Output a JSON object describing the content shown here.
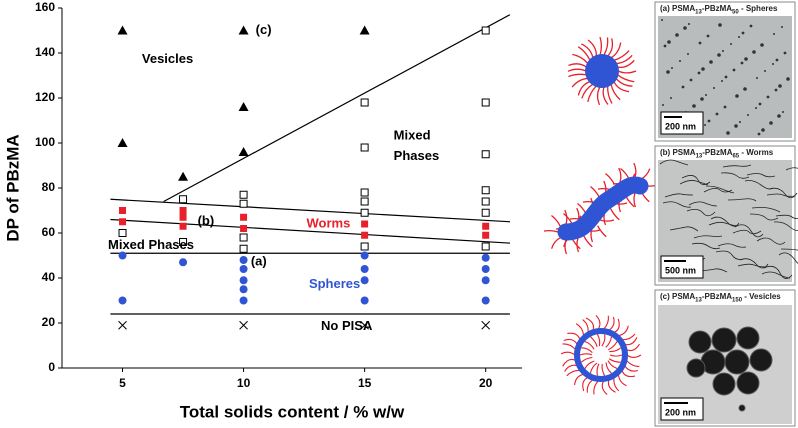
{
  "chart_data": {
    "type": "scatter",
    "xlabel": "Total solids content / % w/w",
    "ylabel": "DP of PBzMA",
    "xlim": [
      2.5,
      21.5
    ],
    "xticks": [
      5,
      10,
      15,
      20
    ],
    "ylim": [
      0,
      160
    ],
    "yticks": [
      0,
      20,
      40,
      60,
      80,
      100,
      120,
      140,
      160
    ],
    "series": [
      {
        "marker": "triangle",
        "color": "#000000",
        "x": [
          5,
          5,
          7.5,
          10,
          10,
          10,
          15
        ],
        "values": [
          150,
          100,
          85,
          150,
          116,
          96,
          150
        ]
      },
      {
        "marker": "square",
        "color": "#e8202a",
        "x": [
          5,
          5,
          7.5,
          7.5,
          7.5,
          10,
          10,
          15,
          15,
          20,
          20
        ],
        "values": [
          70,
          65,
          70,
          67,
          63,
          67,
          62,
          64,
          59,
          63,
          59
        ]
      },
      {
        "marker": "open-square",
        "color": "#000000",
        "x": [
          5,
          7.5,
          7.5,
          10,
          10,
          10,
          10,
          15,
          15,
          15,
          15,
          15,
          15,
          20,
          20,
          20,
          20,
          20,
          20,
          20
        ],
        "values": [
          60,
          75,
          56,
          77,
          73,
          58,
          53,
          118,
          98,
          78,
          74,
          69,
          54,
          150,
          118,
          95,
          79,
          74,
          69,
          54
        ]
      },
      {
        "marker": "circle",
        "color": "#2f55d4",
        "x": [
          5,
          5,
          7.5,
          10,
          10,
          10,
          10,
          10,
          15,
          15,
          15,
          15,
          20,
          20,
          20,
          20
        ],
        "values": [
          50,
          30,
          47,
          48,
          44,
          39,
          35,
          30,
          50,
          44,
          39,
          30,
          49,
          44,
          39,
          30
        ]
      },
      {
        "marker": "cross",
        "color": "#000000",
        "x": [
          5,
          10,
          15,
          20
        ],
        "values": [
          19,
          19,
          19,
          19
        ]
      }
    ],
    "boundaries": [
      {
        "x": [
          6.7,
          21
        ],
        "values": [
          74,
          157
        ]
      },
      {
        "x": [
          4.5,
          21
        ],
        "values": [
          75,
          65
        ]
      },
      {
        "x": [
          4.5,
          21
        ],
        "values": [
          66,
          55.5
        ]
      },
      {
        "x": [
          4.5,
          21
        ],
        "values": [
          51,
          51
        ]
      },
      {
        "x": [
          4.5,
          21
        ],
        "values": [
          24,
          24
        ]
      }
    ],
    "annotations": [
      {
        "text": "Vesicles",
        "x": 5.8,
        "y": 137,
        "color": "#000000"
      },
      {
        "text": "(c)",
        "x": 10.5,
        "y": 150,
        "color": "#000000"
      },
      {
        "text": "Mixed",
        "x": 16.2,
        "y": 103,
        "color": "#000000"
      },
      {
        "text": "Phases",
        "x": 16.2,
        "y": 94,
        "color": "#000000"
      },
      {
        "text": "Worms",
        "x": 12.6,
        "y": 64,
        "color": "#e8202a"
      },
      {
        "text": "(b)",
        "x": 8.1,
        "y": 65,
        "color": "#000000"
      },
      {
        "text": "Mixed Phases",
        "x": 4.4,
        "y": 54.5,
        "color": "#000000"
      },
      {
        "text": "(a)",
        "x": 10.3,
        "y": 47,
        "color": "#000000"
      },
      {
        "text": "Spheres",
        "x": 12.7,
        "y": 37,
        "color": "#2f55d4"
      },
      {
        "text": "No PISA",
        "x": 13.2,
        "y": 18.5,
        "color": "#000000"
      }
    ]
  },
  "panels": [
    {
      "caption": [
        "(a) PSMA",
        "13",
        "-PBzMA",
        "50",
        " - Spheres"
      ],
      "scale": "200 nm"
    },
    {
      "caption": [
        "(b) PSMA",
        "13",
        "-PBzMA",
        "65",
        " - Worms"
      ],
      "scale": "500 nm"
    },
    {
      "caption": [
        "(c) PSMA",
        "13",
        "-PBzMA",
        "150",
        " - Vesicles"
      ],
      "scale": "200 nm"
    }
  ]
}
